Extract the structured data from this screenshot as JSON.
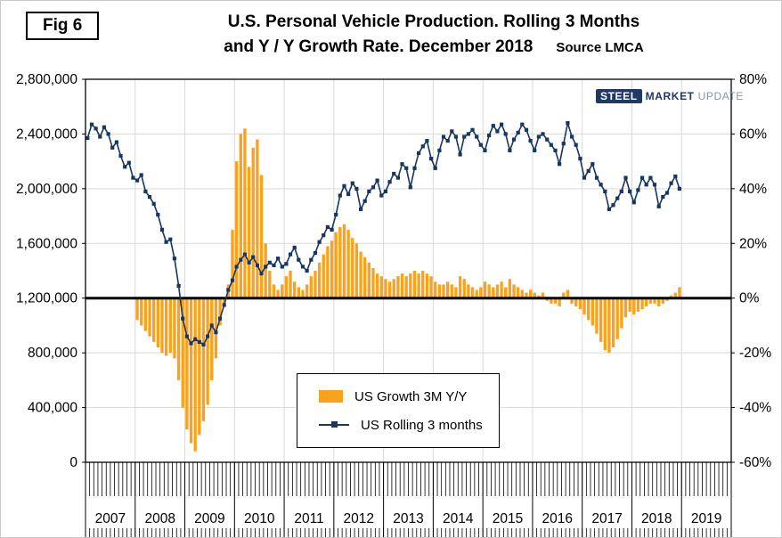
{
  "header": {
    "fig_label": "Fig 6",
    "title_line1": "U.S. Personal Vehicle Production. Rolling 3 Months",
    "title_line2": "and Y / Y Growth Rate. December 2018",
    "source": "Source LMCA"
  },
  "logo": {
    "steel": "STEEL",
    "market": "MARKET",
    "update": "UPDATE"
  },
  "chart_data": {
    "type": "bar+line combo",
    "title": "U.S. Personal Vehicle Production. Rolling 3 Months and Y / Y Growth Rate. December 2018",
    "source": "Source LMCA",
    "x_unit": "month",
    "x_start": "2007-01",
    "x_end": "2018-12",
    "years": [
      "2007",
      "2008",
      "2009",
      "2010",
      "2011",
      "2012",
      "2013",
      "2014",
      "2015",
      "2016",
      "2017",
      "2018",
      "2019"
    ],
    "grid": "on",
    "legend_position": "inside-bottom-center",
    "colors": {
      "grid": "#D9D9D9",
      "zero_line": "#000000",
      "axis": "#000000"
    },
    "left_axis": {
      "min": 0,
      "max": 2800000,
      "ticks": [
        {
          "label": "0",
          "value": 0
        },
        {
          "label": "400,000",
          "value": 400000
        },
        {
          "label": "800,000",
          "value": 800000
        },
        {
          "label": "1,200,000",
          "value": 1200000
        },
        {
          "label": "1,600,000",
          "value": 1600000
        },
        {
          "label": "2,000,000",
          "value": 2000000
        },
        {
          "label": "2,400,000",
          "value": 2400000
        },
        {
          "label": "2,800,000",
          "value": 2800000
        }
      ]
    },
    "right_axis": {
      "min": -60,
      "max": 80,
      "ticks": [
        {
          "label": "-60%",
          "value": -60
        },
        {
          "label": "-40%",
          "value": -40
        },
        {
          "label": "-20%",
          "value": -20
        },
        {
          "label": "0%",
          "value": 0
        },
        {
          "label": "20%",
          "value": 20
        },
        {
          "label": "40%",
          "value": 40
        },
        {
          "label": "60%",
          "value": 60
        },
        {
          "label": "80%",
          "value": 80
        }
      ]
    },
    "series": [
      {
        "name": "US Growth 3M Y/Y",
        "type": "bar",
        "axis": "right",
        "unit": "percent",
        "color": "#FAA21B",
        "values": [
          null,
          null,
          null,
          null,
          null,
          null,
          null,
          null,
          null,
          null,
          null,
          null,
          -8,
          -10,
          -12,
          -14,
          -16,
          -18,
          -20,
          -21,
          -20,
          -22,
          -30,
          -40,
          -48,
          -53,
          -56,
          -50,
          -45,
          -39,
          -30,
          -22,
          -10,
          -2,
          5,
          25,
          50,
          60,
          62,
          48,
          55,
          58,
          45,
          20,
          10,
          5,
          3,
          5,
          8,
          10,
          6,
          4,
          3,
          5,
          8,
          10,
          13,
          16,
          19,
          21,
          24,
          26,
          27,
          25,
          22,
          20,
          17,
          15,
          13,
          11,
          9,
          8,
          7,
          6,
          7,
          8,
          9,
          8,
          9,
          10,
          9,
          10,
          9,
          8,
          6,
          5,
          5,
          6,
          5,
          4,
          8,
          7,
          5,
          4,
          3,
          4,
          6,
          5,
          4,
          5,
          6,
          4,
          7,
          5,
          4,
          3,
          2,
          3,
          2,
          1,
          2,
          -1,
          -2,
          -2,
          -3,
          2,
          3,
          -2,
          -3,
          -4,
          -6,
          -8,
          -10,
          -13,
          -16,
          -19,
          -20,
          -18,
          -15,
          -11,
          -7,
          -5,
          -6,
          -5,
          -4,
          -3,
          -2,
          -2,
          -3,
          -2,
          -1,
          1,
          2,
          4
        ]
      },
      {
        "name": "US Rolling 3 months",
        "type": "line",
        "axis": "left",
        "unit": "vehicles",
        "color": "#17375E",
        "values": [
          2370000,
          2470000,
          2440000,
          2380000,
          2450000,
          2400000,
          2300000,
          2340000,
          2240000,
          2160000,
          2190000,
          2080000,
          2060000,
          2100000,
          1980000,
          1940000,
          1890000,
          1810000,
          1700000,
          1610000,
          1630000,
          1490000,
          1290000,
          1050000,
          920000,
          870000,
          900000,
          880000,
          860000,
          920000,
          1000000,
          950000,
          1050000,
          1150000,
          1260000,
          1330000,
          1430000,
          1480000,
          1520000,
          1460000,
          1500000,
          1440000,
          1380000,
          1430000,
          1460000,
          1440000,
          1490000,
          1430000,
          1450000,
          1520000,
          1570000,
          1480000,
          1430000,
          1400000,
          1480000,
          1530000,
          1610000,
          1660000,
          1720000,
          1700000,
          1810000,
          1950000,
          2020000,
          1960000,
          2040000,
          2000000,
          1850000,
          1910000,
          1980000,
          2010000,
          2060000,
          1950000,
          1980000,
          2050000,
          2110000,
          2080000,
          2180000,
          2150000,
          2010000,
          2150000,
          2260000,
          2310000,
          2350000,
          2220000,
          2150000,
          2280000,
          2380000,
          2350000,
          2420000,
          2380000,
          2250000,
          2380000,
          2400000,
          2430000,
          2380000,
          2320000,
          2280000,
          2390000,
          2460000,
          2420000,
          2470000,
          2400000,
          2280000,
          2360000,
          2410000,
          2470000,
          2430000,
          2350000,
          2280000,
          2380000,
          2400000,
          2360000,
          2320000,
          2280000,
          2180000,
          2330000,
          2480000,
          2380000,
          2320000,
          2220000,
          2080000,
          2130000,
          2180000,
          2080000,
          2030000,
          1980000,
          1850000,
          1880000,
          1930000,
          1980000,
          2080000,
          1980000,
          1900000,
          1990000,
          2080000,
          2030000,
          2080000,
          2030000,
          1870000,
          1940000,
          1970000,
          2040000,
          2090000,
          2000000
        ]
      }
    ]
  }
}
